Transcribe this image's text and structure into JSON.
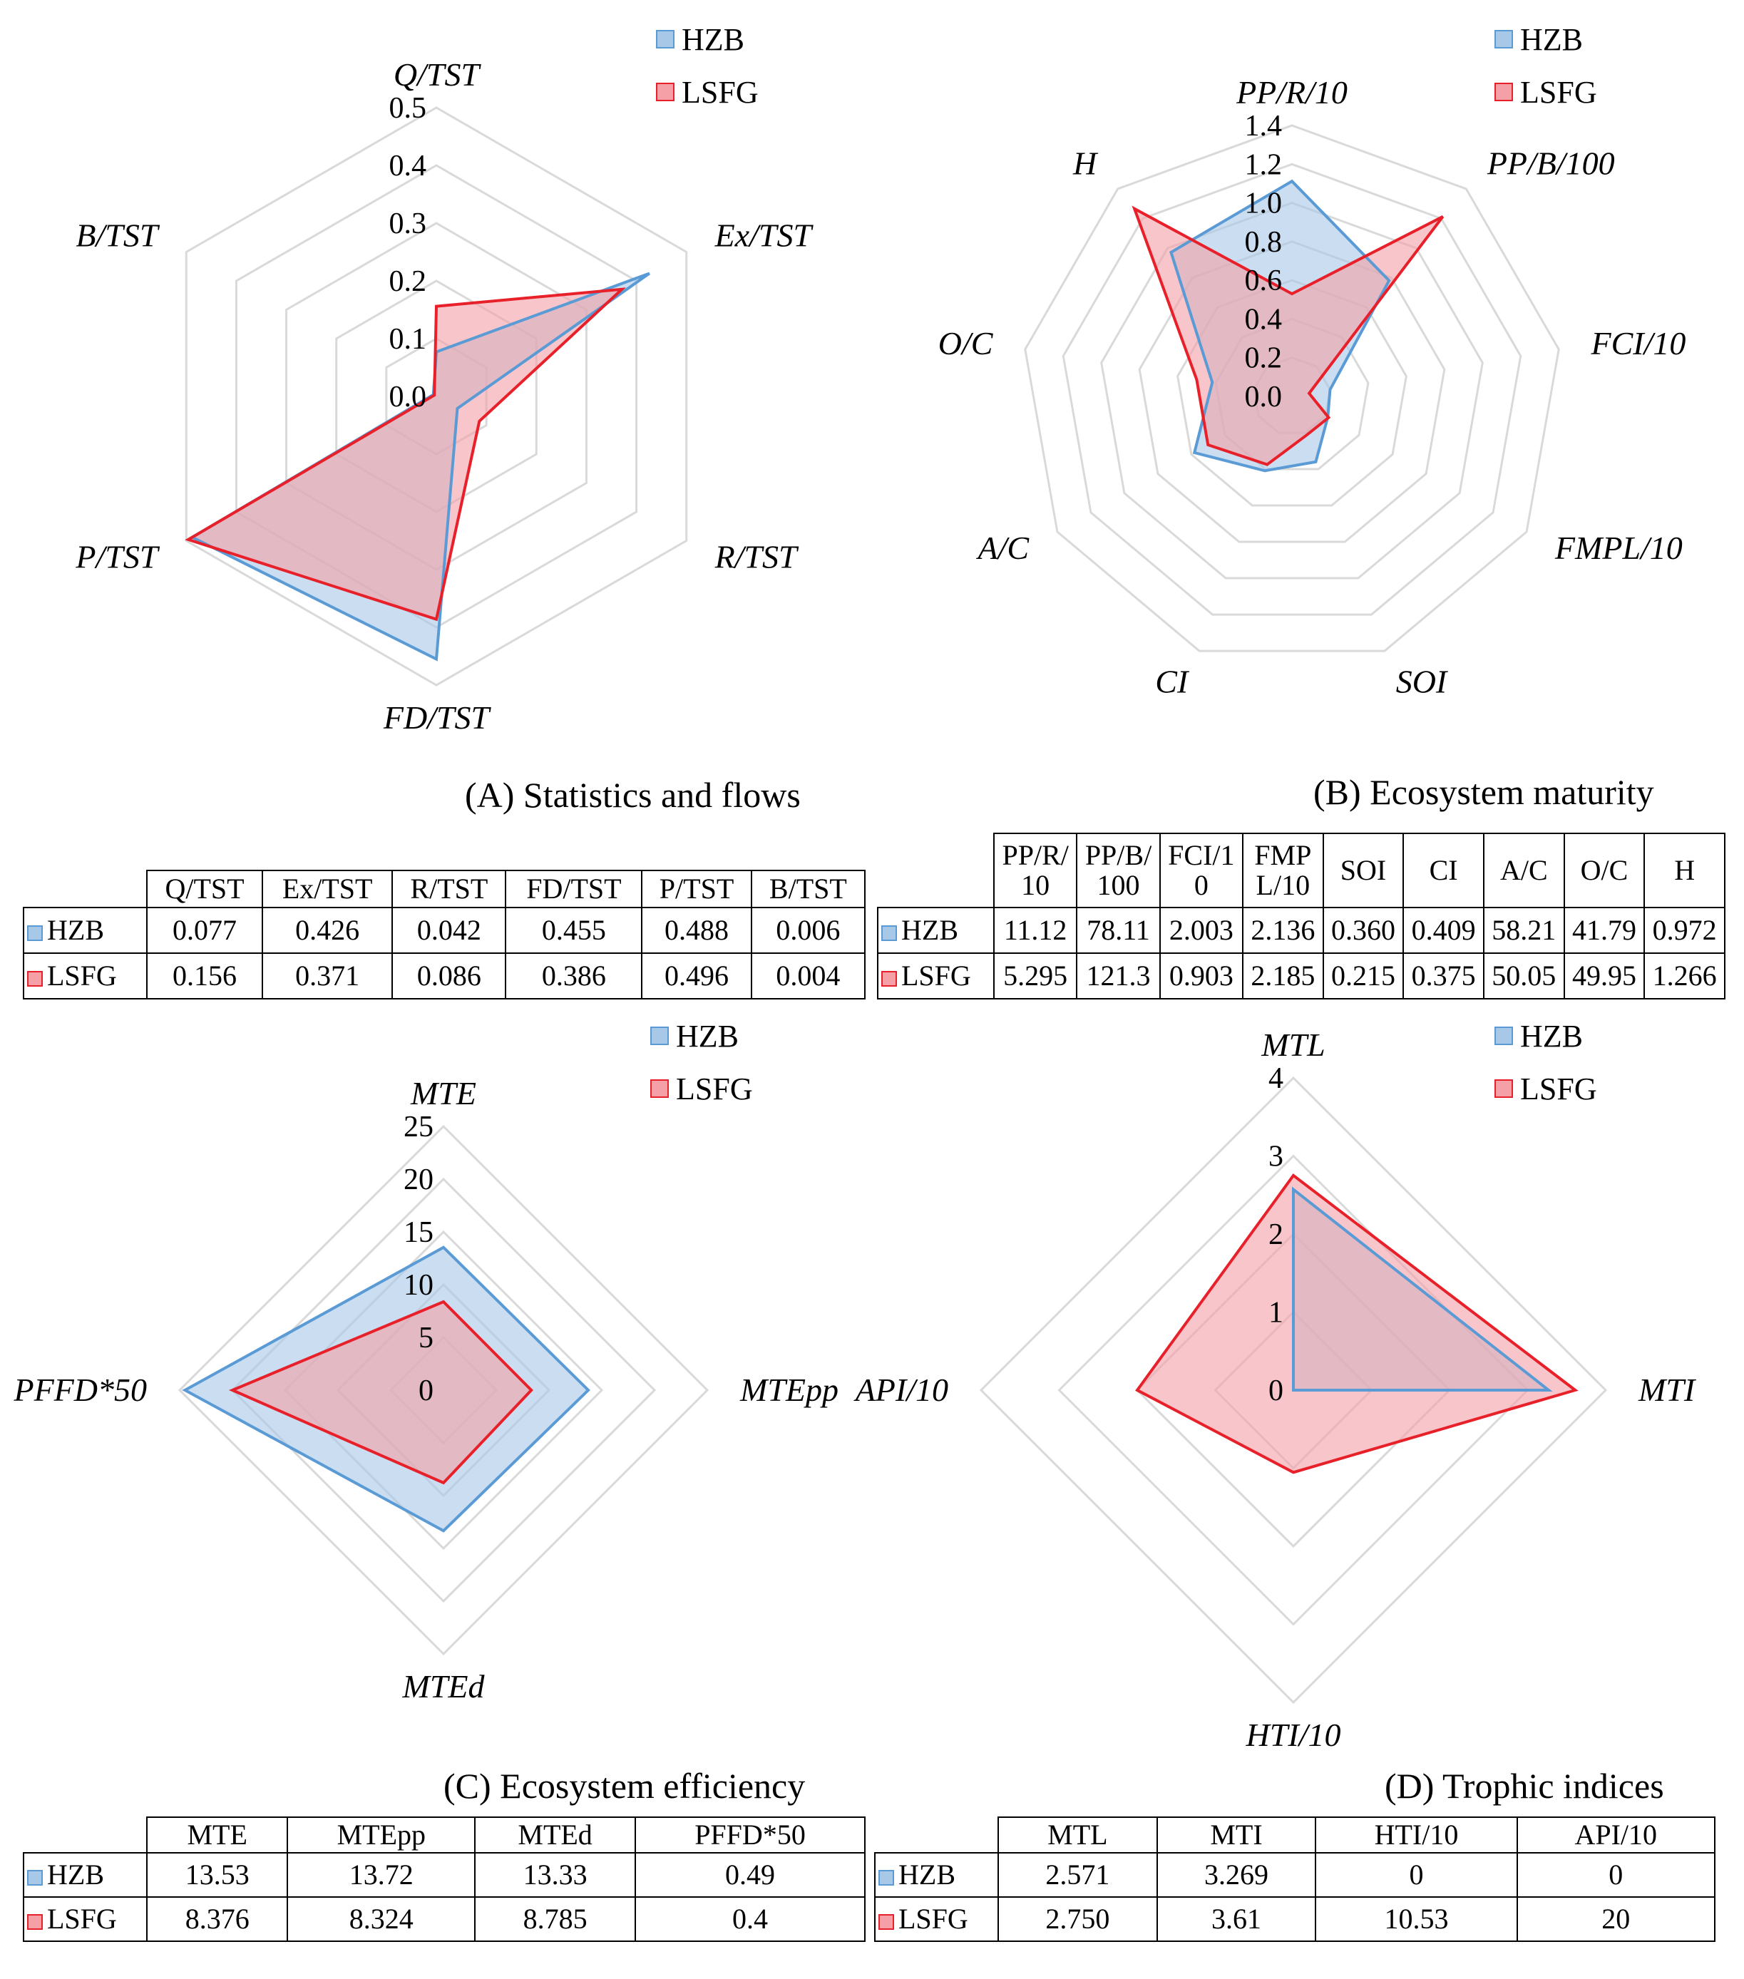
{
  "colors": {
    "hzb_fill": "#a8c8e8",
    "hzb_stroke": "#5b9bd5",
    "lsfg_fill": "#f4a0a6",
    "lsfg_stroke": "#e8202a",
    "grid": "#d9d9d9"
  },
  "legend": {
    "hzb": "HZB",
    "lsfg": "LSFG"
  },
  "chart_data": [
    {
      "id": "A",
      "type": "radar",
      "title": "(A) Statistics and flows",
      "axes": [
        "Q/TST",
        "Ex/TST",
        "R/TST",
        "FD/TST",
        "P/TST",
        "B/TST"
      ],
      "rmax": 0.5,
      "ticks": [
        "0.0",
        "0.1",
        "0.2",
        "0.3",
        "0.4",
        "0.5"
      ],
      "series": [
        {
          "name": "HZB",
          "values": [
            0.077,
            0.426,
            0.042,
            0.455,
            0.488,
            0.006
          ]
        },
        {
          "name": "LSFG",
          "values": [
            0.156,
            0.371,
            0.086,
            0.386,
            0.496,
            0.004
          ]
        }
      ]
    },
    {
      "id": "B",
      "type": "radar",
      "title": "(B) Ecosystem maturity",
      "axes": [
        "PP/R/10",
        "PP/B/100",
        "FCI/10",
        "FMPL/10",
        "SOI",
        "CI",
        "A/C",
        "O/C",
        "H"
      ],
      "rmax": 1.4,
      "ticks": [
        "0.0",
        "0.2",
        "0.4",
        "0.6",
        "0.8",
        "1.0",
        "1.2",
        "1.4"
      ],
      "series": [
        {
          "name": "HZB",
          "values": [
            1.112,
            0.781,
            0.2,
            0.214,
            0.36,
            0.409,
            0.582,
            0.418,
            0.972
          ]
        },
        {
          "name": "LSFG",
          "values": [
            0.53,
            1.213,
            0.09,
            0.219,
            0.215,
            0.375,
            0.501,
            0.5,
            1.266
          ]
        }
      ]
    },
    {
      "id": "C",
      "type": "radar",
      "title": "(C) Ecosystem efficiency",
      "axes": [
        "MTE",
        "MTEpp",
        "MTEd",
        "PFFD*50"
      ],
      "rmax": 25,
      "ticks": [
        "0",
        "5",
        "10",
        "15",
        "20",
        "25"
      ],
      "series": [
        {
          "name": "HZB",
          "values": [
            13.53,
            13.72,
            13.33,
            24.5
          ]
        },
        {
          "name": "LSFG",
          "values": [
            8.376,
            8.324,
            8.785,
            20
          ]
        }
      ]
    },
    {
      "id": "D",
      "type": "radar",
      "title": "(D) Trophic indices",
      "axes": [
        "MTL",
        "MTI",
        "HTI/10",
        "API/10"
      ],
      "rmax": 4,
      "ticks": [
        "0",
        "1",
        "2",
        "3",
        "4"
      ],
      "series": [
        {
          "name": "HZB",
          "values": [
            2.571,
            3.269,
            0,
            0
          ]
        },
        {
          "name": "LSFG",
          "values": [
            2.75,
            3.61,
            1.053,
            2.0
          ]
        }
      ]
    }
  ],
  "tables": {
    "A": {
      "headers": [
        "Q/TST",
        "Ex/TST",
        "R/TST",
        "FD/TST",
        "P/TST",
        "B/TST"
      ],
      "rows": [
        {
          "label": "HZB",
          "cells": [
            "0.077",
            "0.426",
            "0.042",
            "0.455",
            "0.488",
            "0.006"
          ]
        },
        {
          "label": "LSFG",
          "cells": [
            "0.156",
            "0.371",
            "0.086",
            "0.386",
            "0.496",
            "0.004"
          ]
        }
      ]
    },
    "B": {
      "headers": [
        [
          "PP/R/",
          "10"
        ],
        [
          "PP/B/",
          "100"
        ],
        [
          "FCI/1",
          "0"
        ],
        [
          "FMP",
          "L/10"
        ],
        [
          "SOI",
          ""
        ],
        [
          "CI",
          ""
        ],
        [
          "A/C",
          ""
        ],
        [
          "O/C",
          ""
        ],
        [
          "H",
          ""
        ]
      ],
      "rows": [
        {
          "label": "HZB",
          "cells": [
            "11.12",
            "78.11",
            "2.003",
            "2.136",
            "0.360",
            "0.409",
            "58.21",
            "41.79",
            "0.972"
          ]
        },
        {
          "label": "LSFG",
          "cells": [
            "5.295",
            "121.3",
            "0.903",
            "2.185",
            "0.215",
            "0.375",
            "50.05",
            "49.95",
            "1.266"
          ]
        }
      ]
    },
    "C": {
      "headers": [
        "MTE",
        "MTEpp",
        "MTEd",
        "PFFD*50"
      ],
      "rows": [
        {
          "label": "HZB",
          "cells": [
            "13.53",
            "13.72",
            "13.33",
            "0.49"
          ]
        },
        {
          "label": "LSFG",
          "cells": [
            "8.376",
            "8.324",
            "8.785",
            "0.4"
          ]
        }
      ]
    },
    "D": {
      "headers": [
        "MTL",
        "MTI",
        "HTI/10",
        "API/10"
      ],
      "rows": [
        {
          "label": "HZB",
          "cells": [
            "2.571",
            "3.269",
            "0",
            "0"
          ]
        },
        {
          "label": "LSFG",
          "cells": [
            "2.750",
            "3.61",
            "10.53",
            "20"
          ]
        }
      ]
    }
  }
}
